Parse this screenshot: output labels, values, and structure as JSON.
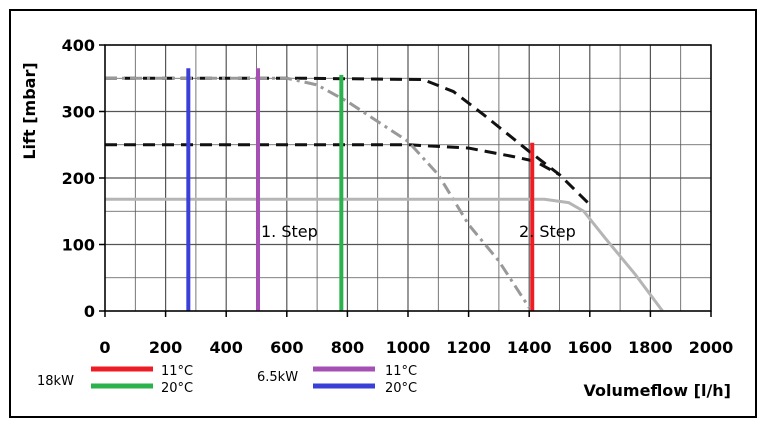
{
  "chart_data": {
    "type": "line",
    "title": "",
    "xlabel": "Volumeflow [l/h]",
    "ylabel": "Lift [mbar]",
    "xlim": [
      0,
      2000
    ],
    "ylim": [
      0,
      400
    ],
    "x_ticks": [
      0,
      200,
      400,
      600,
      800,
      1000,
      1200,
      1400,
      1600,
      1800,
      2000
    ],
    "y_ticks": [
      0,
      100,
      200,
      300,
      400
    ],
    "grid": true,
    "annotations": [
      "1. Step",
      "2. Step"
    ],
    "curves": [
      {
        "style": "dash-black",
        "x": [
          0,
          650,
          1050,
          1150,
          1250,
          1400,
          1500,
          1600
        ],
        "y": [
          350,
          350,
          348,
          330,
          295,
          240,
          205,
          160
        ]
      },
      {
        "style": "dash-black",
        "x": [
          0,
          1000,
          1200,
          1350,
          1420,
          1500
        ],
        "y": [
          250,
          250,
          245,
          232,
          225,
          205
        ]
      },
      {
        "style": "dashdot-gray",
        "x": [
          0,
          600,
          700,
          800,
          900,
          1000,
          1100,
          1200,
          1300,
          1400
        ],
        "y": [
          350,
          350,
          340,
          315,
          285,
          255,
          205,
          130,
          75,
          5
        ]
      },
      {
        "style": "solid-lightgray",
        "x": [
          0,
          1450,
          1530,
          1580,
          1650,
          1750,
          1840
        ],
        "y": [
          168,
          168,
          163,
          150,
          110,
          55,
          0
        ]
      }
    ],
    "verticals": [
      {
        "x": 275,
        "ymax": 365,
        "color": "#3a3fd6"
      },
      {
        "x": 505,
        "ymax": 365,
        "color": "#a64fb4"
      },
      {
        "x": 780,
        "ymax": 355,
        "color": "#2bb24c"
      },
      {
        "x": 1410,
        "ymax": 253,
        "color": "#ee1c25"
      }
    ],
    "legend": {
      "groups": [
        {
          "label": "18kW",
          "entries": [
            {
              "label": "11°C",
              "color": "#ee1c25"
            },
            {
              "label": "20°C",
              "color": "#2bb24c"
            }
          ]
        },
        {
          "label": "6.5kW",
          "entries": [
            {
              "label": "11°C",
              "color": "#a64fb4"
            },
            {
              "label": "20°C",
              "color": "#3a3fd6"
            }
          ]
        }
      ]
    }
  }
}
